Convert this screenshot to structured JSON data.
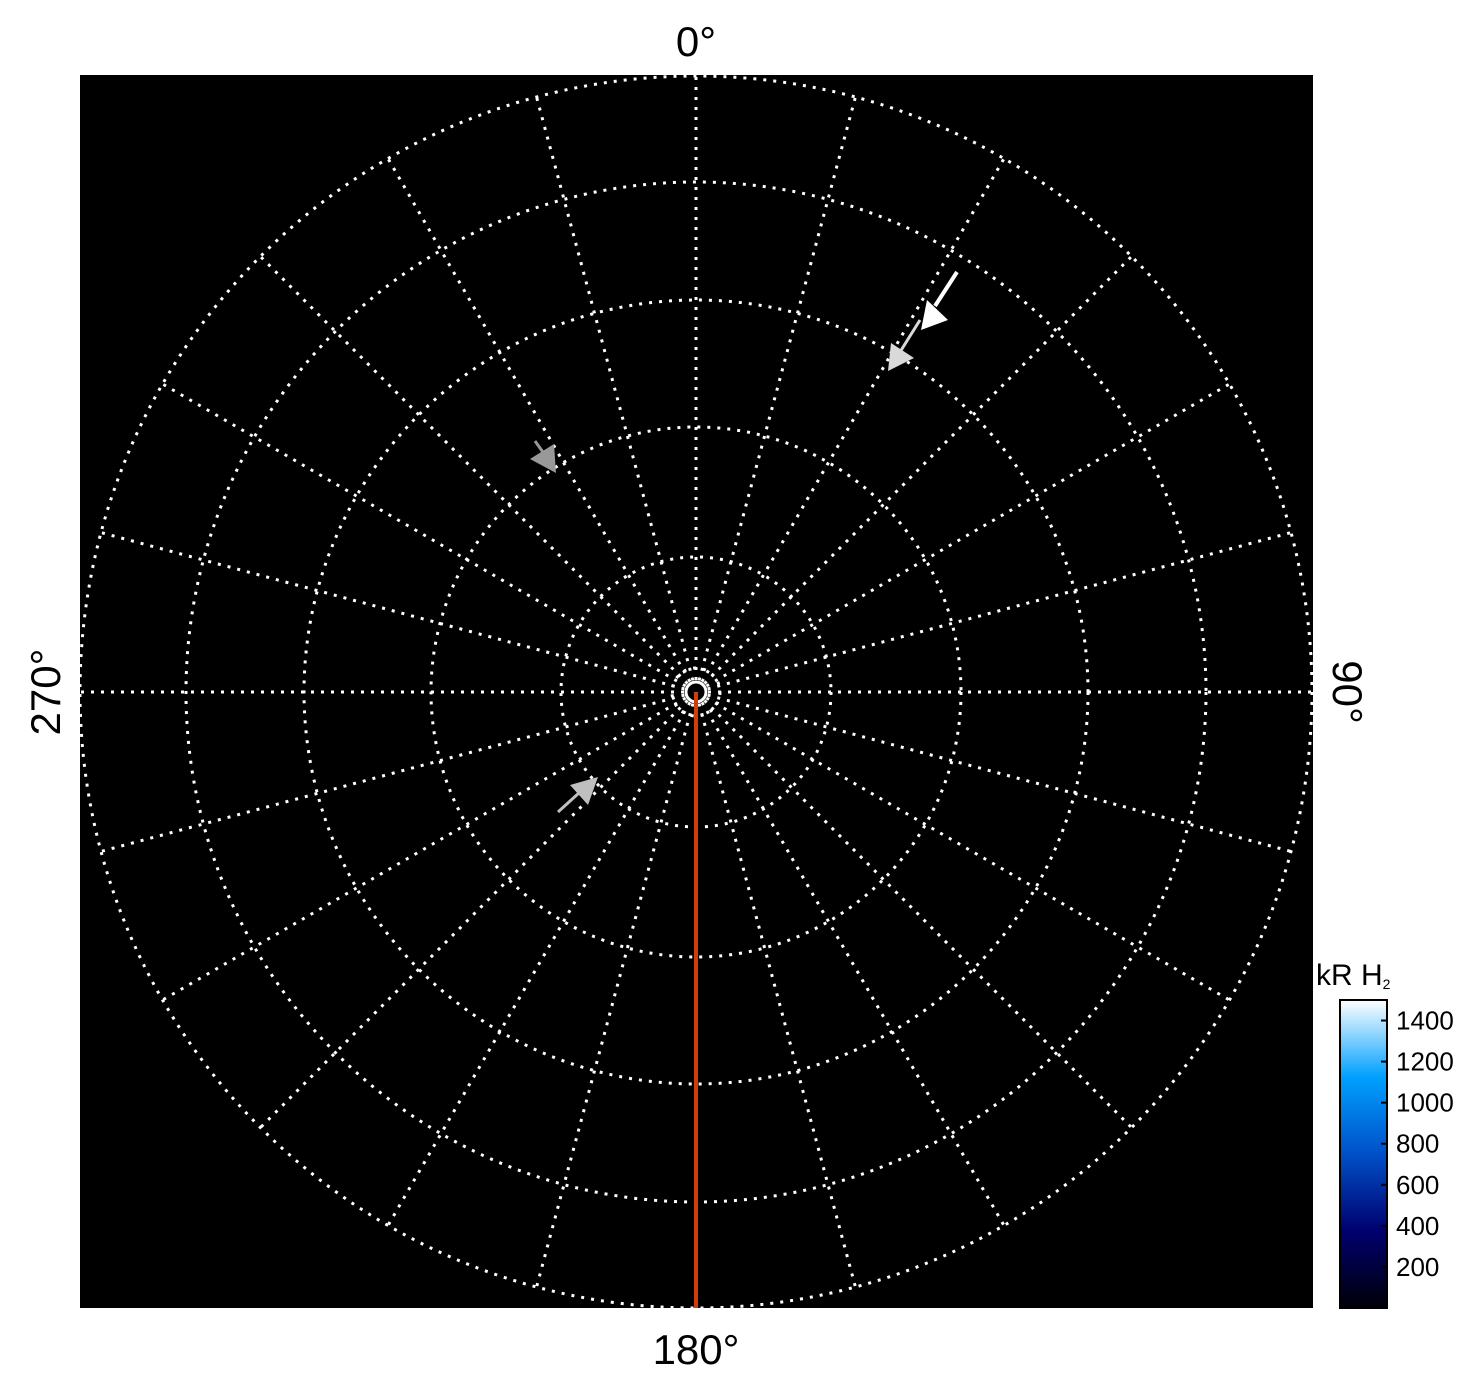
{
  "chart_data": {
    "type": "polar-map",
    "angle_labels": {
      "top": "0°",
      "right": "90°",
      "bottom": "180°",
      "left": "270°"
    },
    "angle_grid_step_deg": 15,
    "ring_count": 5,
    "grid": true,
    "grid_style": "dotted white",
    "background": "#000000",
    "reference_line": {
      "angle_deg": 180,
      "color": "#d23c0a"
    },
    "colorbar": {
      "label": "kR H",
      "label_subscript": "2",
      "ticks": [
        200,
        400,
        600,
        800,
        1000,
        1200,
        1400
      ],
      "range": [
        0,
        1500
      ],
      "colormap": [
        "#000008",
        "#00006e",
        "#0050c8",
        "#00a0ff",
        "#ffffff"
      ],
      "placement": "bottom-right"
    },
    "arrows": [
      {
        "color": "#ffffff"
      },
      {
        "color": "#d9d9d9"
      },
      {
        "color": "#999999"
      },
      {
        "color": "#bfbfbf"
      }
    ]
  }
}
